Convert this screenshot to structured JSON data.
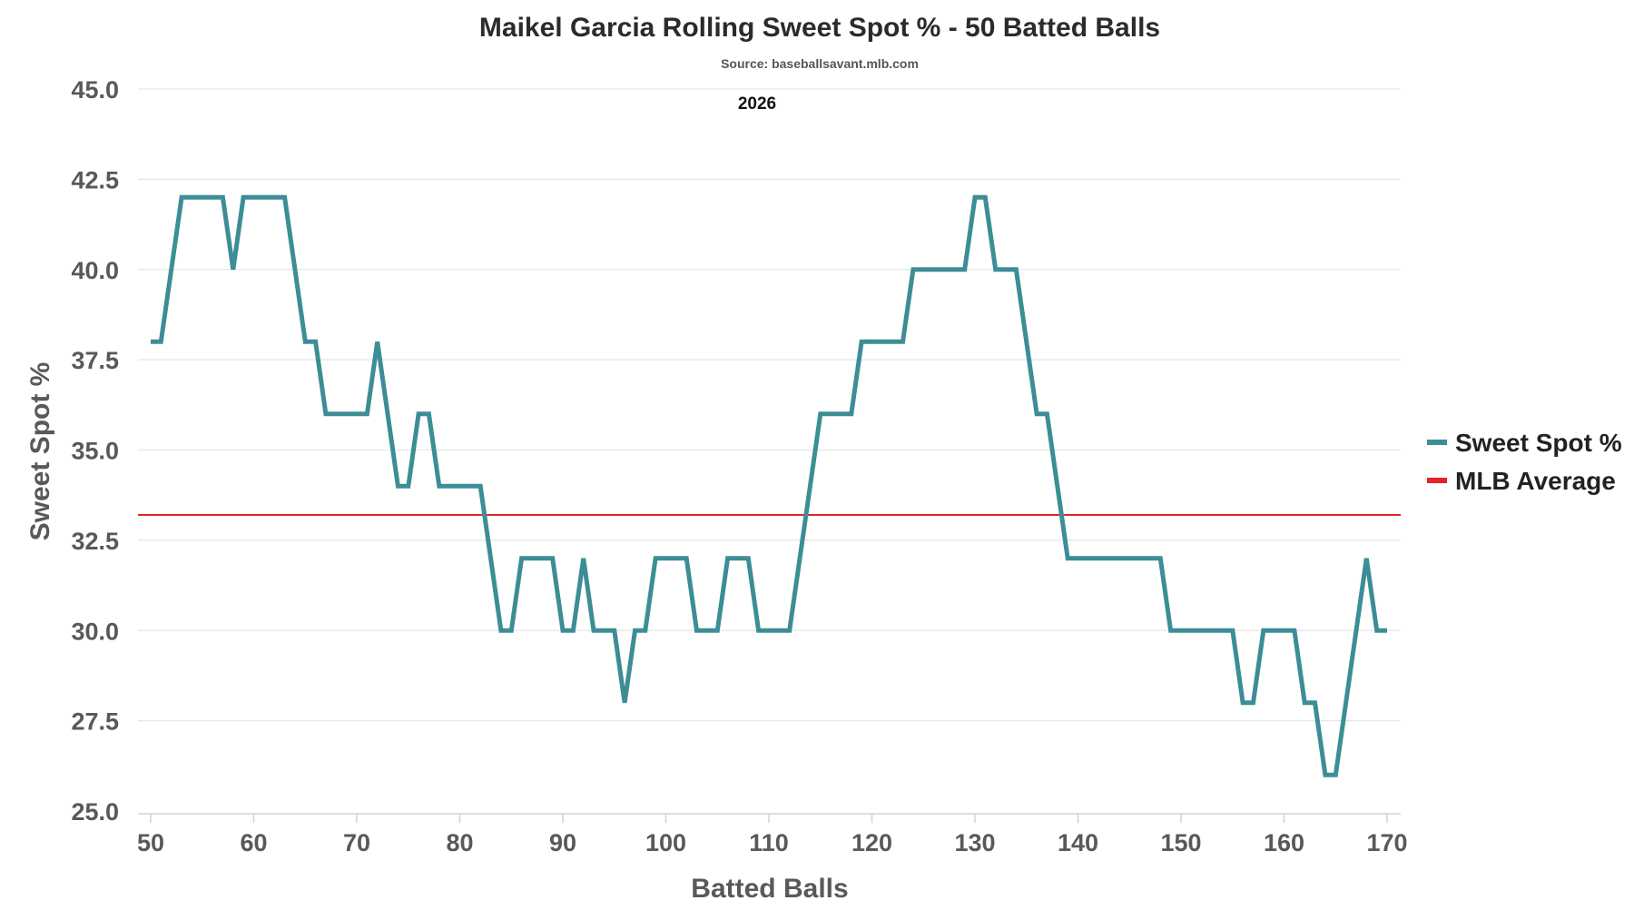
{
  "chart_data": {
    "type": "line",
    "title": "Maikel Garcia Rolling Sweet Spot % - 50 Batted Balls",
    "subtitle": "Source: baseballsavant.mlb.com",
    "annotation": "2026",
    "xlabel": "Batted Balls",
    "ylabel": "Sweet Spot %",
    "xlim": [
      50,
      170
    ],
    "ylim": [
      25,
      45
    ],
    "x_ticks": [
      "50",
      "60",
      "70",
      "80",
      "90",
      "100",
      "110",
      "120",
      "130",
      "140",
      "150",
      "160",
      "170"
    ],
    "y_ticks": [
      "25.0",
      "27.5",
      "30.0",
      "32.5",
      "35.0",
      "37.5",
      "40.0",
      "42.5",
      "45.0"
    ],
    "grid": true,
    "legend_position": "right",
    "series": [
      {
        "name": "Sweet Spot %",
        "color": "#3d8d96",
        "points": [
          [
            50,
            38
          ],
          [
            51,
            38
          ],
          [
            53,
            42
          ],
          [
            57,
            42
          ],
          [
            58,
            40
          ],
          [
            59,
            42
          ],
          [
            63,
            42
          ],
          [
            65,
            38
          ],
          [
            66,
            38
          ],
          [
            67,
            36
          ],
          [
            71,
            36
          ],
          [
            72,
            38
          ],
          [
            74,
            34
          ],
          [
            75,
            34
          ],
          [
            76,
            36
          ],
          [
            77,
            36
          ],
          [
            78,
            34
          ],
          [
            82,
            34
          ],
          [
            84,
            30
          ],
          [
            85,
            30
          ],
          [
            86,
            32
          ],
          [
            89,
            32
          ],
          [
            90,
            30
          ],
          [
            91,
            30
          ],
          [
            92,
            32
          ],
          [
            93,
            30
          ],
          [
            95,
            30
          ],
          [
            96,
            28
          ],
          [
            97,
            30
          ],
          [
            98,
            30
          ],
          [
            99,
            32
          ],
          [
            102,
            32
          ],
          [
            103,
            30
          ],
          [
            105,
            30
          ],
          [
            106,
            32
          ],
          [
            108,
            32
          ],
          [
            109,
            30
          ],
          [
            112,
            30
          ],
          [
            115,
            36
          ],
          [
            118,
            36
          ],
          [
            119,
            38
          ],
          [
            123,
            38
          ],
          [
            124,
            40
          ],
          [
            129,
            40
          ],
          [
            130,
            42
          ],
          [
            131,
            42
          ],
          [
            132,
            40
          ],
          [
            134,
            40
          ],
          [
            136,
            36
          ],
          [
            137,
            36
          ],
          [
            139,
            32
          ],
          [
            148,
            32
          ],
          [
            149,
            30
          ],
          [
            155,
            30
          ],
          [
            156,
            28
          ],
          [
            157,
            28
          ],
          [
            158,
            30
          ],
          [
            161,
            30
          ],
          [
            162,
            28
          ],
          [
            163,
            28
          ],
          [
            164,
            26
          ],
          [
            165,
            26
          ],
          [
            168,
            32
          ],
          [
            169,
            30
          ],
          [
            170,
            30
          ]
        ]
      },
      {
        "name": "MLB Average",
        "color": "#e8202a",
        "constant": 33.2
      }
    ]
  }
}
